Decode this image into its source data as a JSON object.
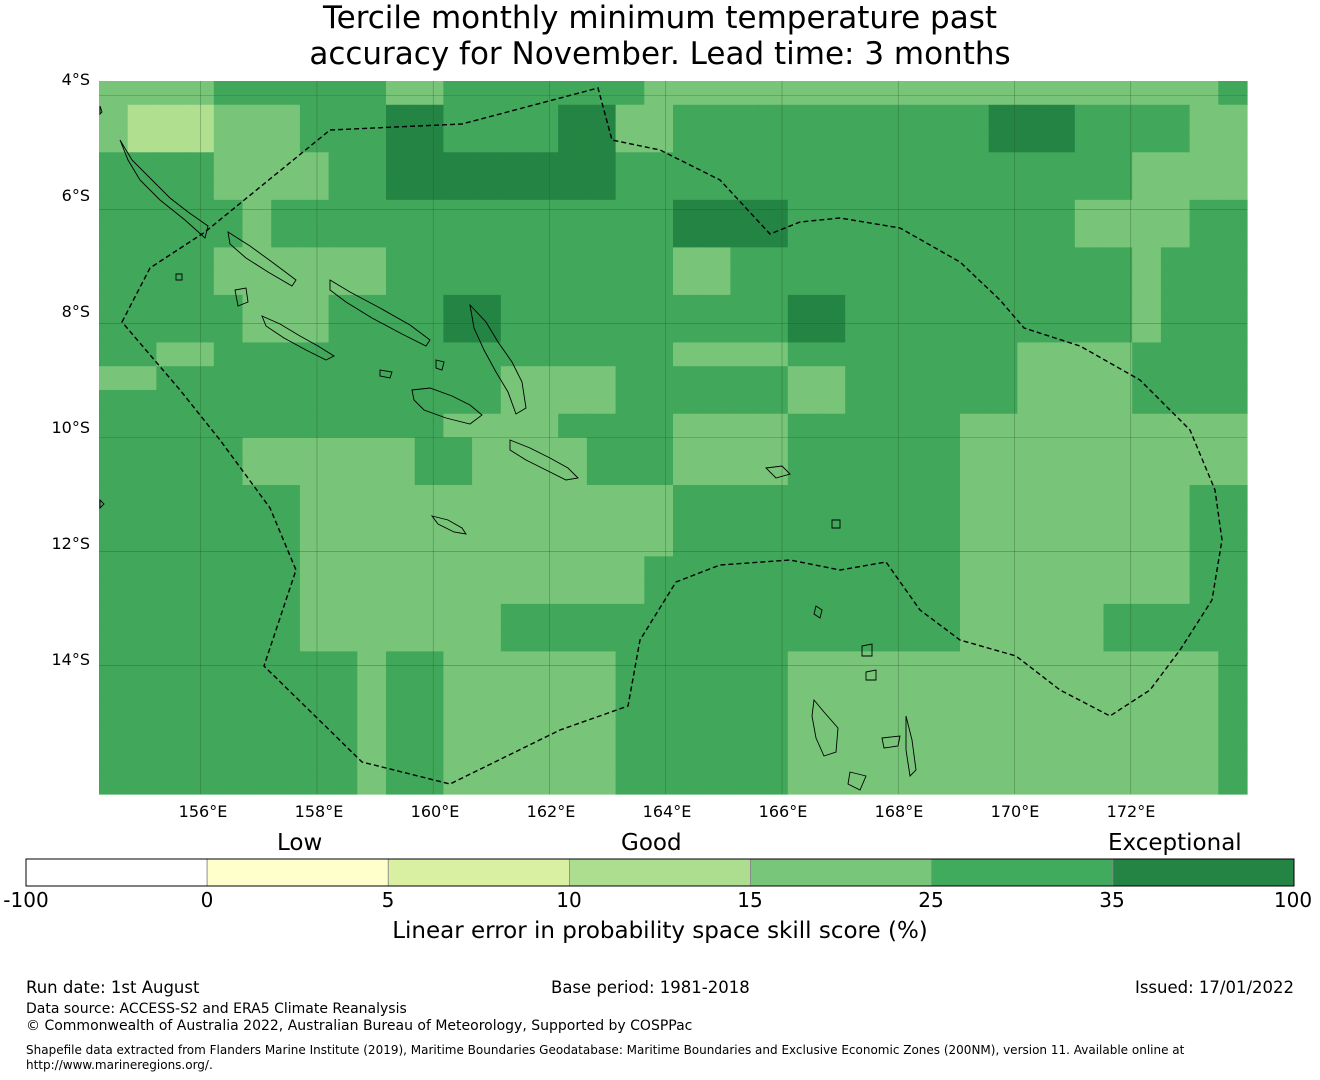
{
  "title": {
    "line1": "Tercile monthly minimum temperature past",
    "line2": "accuracy for November. Lead time: 3 months"
  },
  "map": {
    "lat_range": [
      -16.25,
      -3.75
    ],
    "lon_range": [
      154.25,
      174.0
    ],
    "lat_ticks": [
      "4°S",
      "6°S",
      "8°S",
      "10°S",
      "12°S",
      "14°S"
    ],
    "lon_ticks": [
      "156°E",
      "158°E",
      "160°E",
      "162°E",
      "164°E",
      "166°E",
      "168°E",
      "170°E",
      "172°E"
    ],
    "grid": true,
    "boundary_style": "dashed",
    "cell_colors": {
      "0": "#d8eea0",
      "1": "#b1df90",
      "2": "#78c57a",
      "3": "#41a75a",
      "4": "#238443"
    },
    "cells": [
      "2222333333223333333222222222222222222223",
      "2111222333443333442233333333333444333322",
      "2111222333443333442233333333333444333322",
      "3333222233444444443333333333333333332222",
      "3333222233444444443333333333333333332222",
      "3333323333333333333344443333333333222233",
      "3333323333333333333344443333333333222233",
      "3333222222333333333322333333333333332333",
      "3333222222333333333322333333333333332333",
      "3333322233334433333333334433333333332333",
      "3333322233334433333333334433333333332333",
      "3322333333333333333322223333333322223333",
      "2233333333333322223333332233333322223333",
      "3333333333333322223333332233333322223333",
      "3333333333332222333322223333332222222222",
      "3333322222233222233322223333332222222222",
      "3333322222233222233322223333332222222222",
      "3333333222222222222233333333332222222233",
      "3333333222222222222233333333332222222233",
      "3333333222222222222233333333332222222233",
      "3333333222222222222333333333332222222233",
      "3333333222222222222333333333332222222233",
      "3333333222222233333333333333332222233333",
      "3333333222222233333333333333332222233333",
      "3333333332332222223333332222222222222223",
      "3333333332332222223333332222222222222223",
      "3333333332332222223333332222222222222223",
      "3333333332332222223333332222222222222223",
      "3333333332332222223333332222222222222223",
      "3333333332332222223333332222222222222223"
    ]
  },
  "colorbar": {
    "categories": [
      "Low",
      "Good",
      "Exceptional"
    ],
    "ticks": [
      "-100",
      "0",
      "5",
      "10",
      "15",
      "25",
      "35",
      "100"
    ],
    "colors": [
      "#ffffff",
      "#ffffcc",
      "#d9f0a3",
      "#addd8e",
      "#78c679",
      "#41ab5d",
      "#238443"
    ],
    "label": "Linear error in probability space skill score (%)"
  },
  "footer": {
    "run_date": "Run date: 1st August",
    "base_period": "Base period: 1981-2018",
    "issued": "Issued: 17/01/2022",
    "data_source": "Data source: ACCESS-S2 and ERA5 Climate Reanalysis",
    "copyright": "© Commonwealth of Australia 2022, Australian Bureau of Meteorology, Supported by COSPPac",
    "shapefile_line1": "Shapefile data extracted from Flanders Marine Institute (2019), Maritime Boundaries Geodatabase: Maritime Boundaries and Exclusive Economic Zones (200NM), version 11. Available online at",
    "shapefile_line2": "http://www.marineregions.org/."
  }
}
